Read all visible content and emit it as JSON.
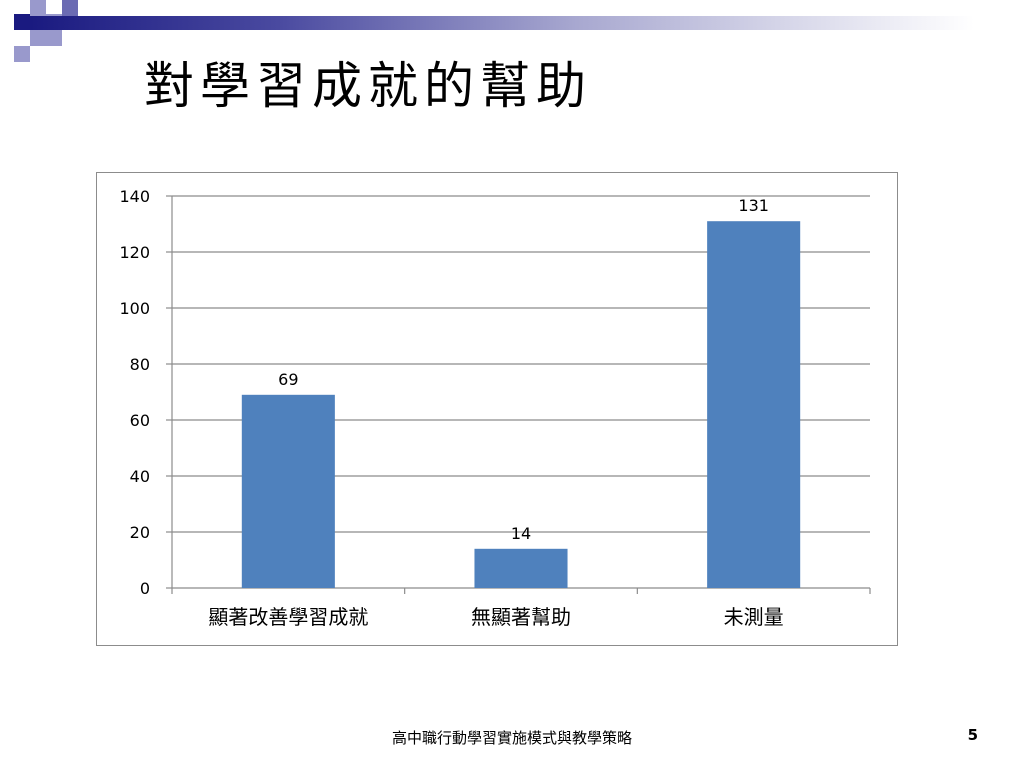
{
  "slide": {
    "title": "對學習成就的幫助",
    "footer": "高中職行動學習實施模式與教學策略",
    "page_number": "5"
  },
  "colors": {
    "bar": "#4f81bd",
    "grid": "#8c8c8c",
    "accent_dark": "#1a1a80",
    "accent_light": "#9999cc"
  },
  "chart_data": {
    "type": "bar",
    "title": "",
    "xlabel": "",
    "ylabel": "",
    "categories": [
      "顯著改善學習成就",
      "無顯著幫助",
      "未測量"
    ],
    "values": [
      69,
      14,
      131
    ],
    "data_labels": [
      "69",
      "14",
      "131"
    ],
    "ylim": [
      0,
      140
    ],
    "yticks": [
      0,
      20,
      40,
      60,
      80,
      100,
      120,
      140
    ],
    "grid": true,
    "legend": "none"
  }
}
